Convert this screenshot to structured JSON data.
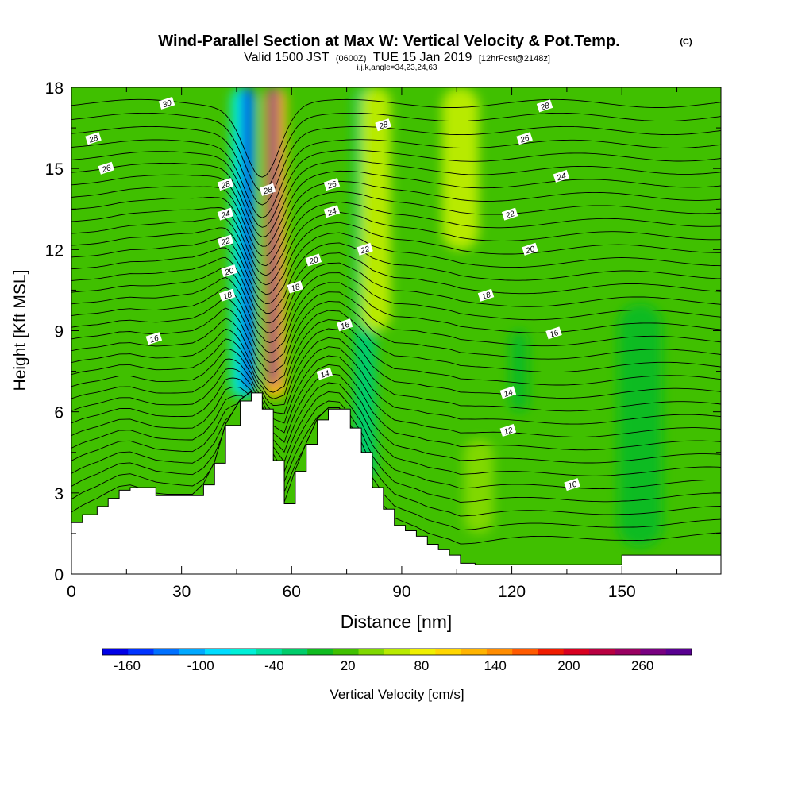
{
  "title": {
    "main": "Wind-Parallel Section at Max W: Vertical Velocity & Pot.Temp.",
    "copyright": "(C)",
    "subtitle_valid": "Valid 1500 JST",
    "subtitle_utc": "(0600Z)",
    "subtitle_date": "TUE 15 Jan 2019",
    "subtitle_fcst": "[12hrFcst@2148z]",
    "indices": "i,j,k,angle=34,23,24,63"
  },
  "chart_data": {
    "type": "heatmap",
    "xlabel": "Distance [nm]",
    "ylabel": "Height [Kft MSL]",
    "xlim": [
      0,
      177
    ],
    "ylim": [
      0,
      18
    ],
    "x_ticks": [
      "0",
      "30",
      "60",
      "90",
      "120",
      "150"
    ],
    "x_tick_values": [
      0,
      30,
      60,
      90,
      120,
      150
    ],
    "y_ticks": [
      "0",
      "3",
      "6",
      "9",
      "12",
      "15",
      "18"
    ],
    "y_tick_values": [
      0,
      3,
      6,
      9,
      12,
      15,
      18
    ],
    "colorbar": {
      "label": "Vertical Velocity [cm/s]",
      "min": -180,
      "max": 300,
      "step": 20,
      "tick_labels": [
        "-160",
        "-100",
        "-40",
        "20",
        "80",
        "140",
        "200",
        "260"
      ],
      "colors": [
        "#0000e6",
        "#0033ff",
        "#0070ff",
        "#00a8ff",
        "#00dcff",
        "#00f0d8",
        "#00e0a0",
        "#00cc6a",
        "#10bb20",
        "#40c000",
        "#80d800",
        "#b8ea00",
        "#f0f000",
        "#ffd600",
        "#ffb400",
        "#ff8c00",
        "#ff5a00",
        "#f01c00",
        "#d80020",
        "#b80040",
        "#980060",
        "#780080",
        "#580090"
      ]
    },
    "vertical_velocity_features": [
      {
        "kind": "downdraft",
        "x_center": 48,
        "x_width": 3,
        "y_from": 6.7,
        "y_to": 18,
        "value": -170
      },
      {
        "kind": "downdraft-halo",
        "x_center": 47,
        "x_width": 7,
        "y_from": 6.5,
        "y_to": 18,
        "value": -80
      },
      {
        "kind": "updraft",
        "x_center": 55,
        "x_width": 2.5,
        "y_from": 7,
        "y_to": 18,
        "value": 250
      },
      {
        "kind": "updraft-halo",
        "x_center": 55.5,
        "x_width": 6,
        "y_from": 6.5,
        "y_to": 18,
        "value": 110
      },
      {
        "kind": "weak-sink",
        "x_center": 80,
        "x_width": 6,
        "y_from": 3.5,
        "y_to": 18,
        "value": -30
      },
      {
        "kind": "weak-lift",
        "x_center": 83,
        "x_width": 8,
        "y_from": 9,
        "y_to": 18,
        "value": 40
      },
      {
        "kind": "weak-lift",
        "x_center": 106,
        "x_width": 10,
        "y_from": 12,
        "y_to": 18,
        "value": 50
      },
      {
        "kind": "weak-lift",
        "x_center": 111,
        "x_width": 8,
        "y_from": 1.5,
        "y_to": 5,
        "value": 30
      },
      {
        "kind": "weak-sink",
        "x_center": 155,
        "x_width": 12,
        "y_from": 1,
        "y_to": 10,
        "value": -20
      },
      {
        "kind": "weak-sink",
        "x_center": 122,
        "x_width": 5,
        "y_from": 6,
        "y_to": 9,
        "value": -20
      }
    ],
    "terrain": {
      "x": [
        0,
        3,
        7,
        10,
        13,
        16,
        23,
        33,
        36,
        39,
        42,
        46,
        49,
        52,
        55,
        58,
        61,
        64,
        67,
        70,
        73,
        76,
        79,
        82,
        85,
        88,
        91,
        94,
        97,
        100,
        103,
        106,
        110,
        150,
        177
      ],
      "height": [
        1.9,
        2.2,
        2.5,
        2.8,
        3.1,
        3.2,
        2.9,
        2.9,
        3.3,
        4.1,
        5.5,
        6.4,
        6.7,
        6.1,
        4.2,
        2.6,
        3.8,
        4.8,
        5.7,
        6.1,
        6.1,
        5.4,
        4.5,
        3.2,
        2.4,
        1.8,
        1.6,
        1.4,
        1.1,
        0.9,
        0.7,
        0.4,
        0.35,
        0.7,
        0.7
      ]
    },
    "theta_contour_labels": [
      {
        "text": "30",
        "x": 26,
        "y": 17.4
      },
      {
        "text": "28",
        "x": 6,
        "y": 16.1
      },
      {
        "text": "26",
        "x": 9.5,
        "y": 15.0
      },
      {
        "text": "28",
        "x": 42,
        "y": 14.4
      },
      {
        "text": "28",
        "x": 53.5,
        "y": 14.2
      },
      {
        "text": "24",
        "x": 42,
        "y": 13.3
      },
      {
        "text": "22",
        "x": 42,
        "y": 12.3
      },
      {
        "text": "20",
        "x": 43,
        "y": 11.2
      },
      {
        "text": "18",
        "x": 42.5,
        "y": 10.3
      },
      {
        "text": "16",
        "x": 22.5,
        "y": 8.7
      },
      {
        "text": "18",
        "x": 61,
        "y": 10.6
      },
      {
        "text": "20",
        "x": 66,
        "y": 11.6
      },
      {
        "text": "22",
        "x": 80,
        "y": 12.0
      },
      {
        "text": "24",
        "x": 71,
        "y": 13.4
      },
      {
        "text": "26",
        "x": 71,
        "y": 14.4
      },
      {
        "text": "28",
        "x": 85,
        "y": 16.6
      },
      {
        "text": "16",
        "x": 74.5,
        "y": 9.2
      },
      {
        "text": "14",
        "x": 69,
        "y": 7.4
      },
      {
        "text": "28",
        "x": 129,
        "y": 17.3
      },
      {
        "text": "26",
        "x": 123.5,
        "y": 16.1
      },
      {
        "text": "24",
        "x": 133.5,
        "y": 14.7
      },
      {
        "text": "22",
        "x": 119.5,
        "y": 13.3
      },
      {
        "text": "20",
        "x": 125,
        "y": 12.0
      },
      {
        "text": "18",
        "x": 113,
        "y": 10.3
      },
      {
        "text": "16",
        "x": 131.5,
        "y": 8.9
      },
      {
        "text": "14",
        "x": 119,
        "y": 6.7
      },
      {
        "text": "12",
        "x": 119,
        "y": 5.3
      },
      {
        "text": "10",
        "x": 136.5,
        "y": 3.3
      }
    ]
  }
}
